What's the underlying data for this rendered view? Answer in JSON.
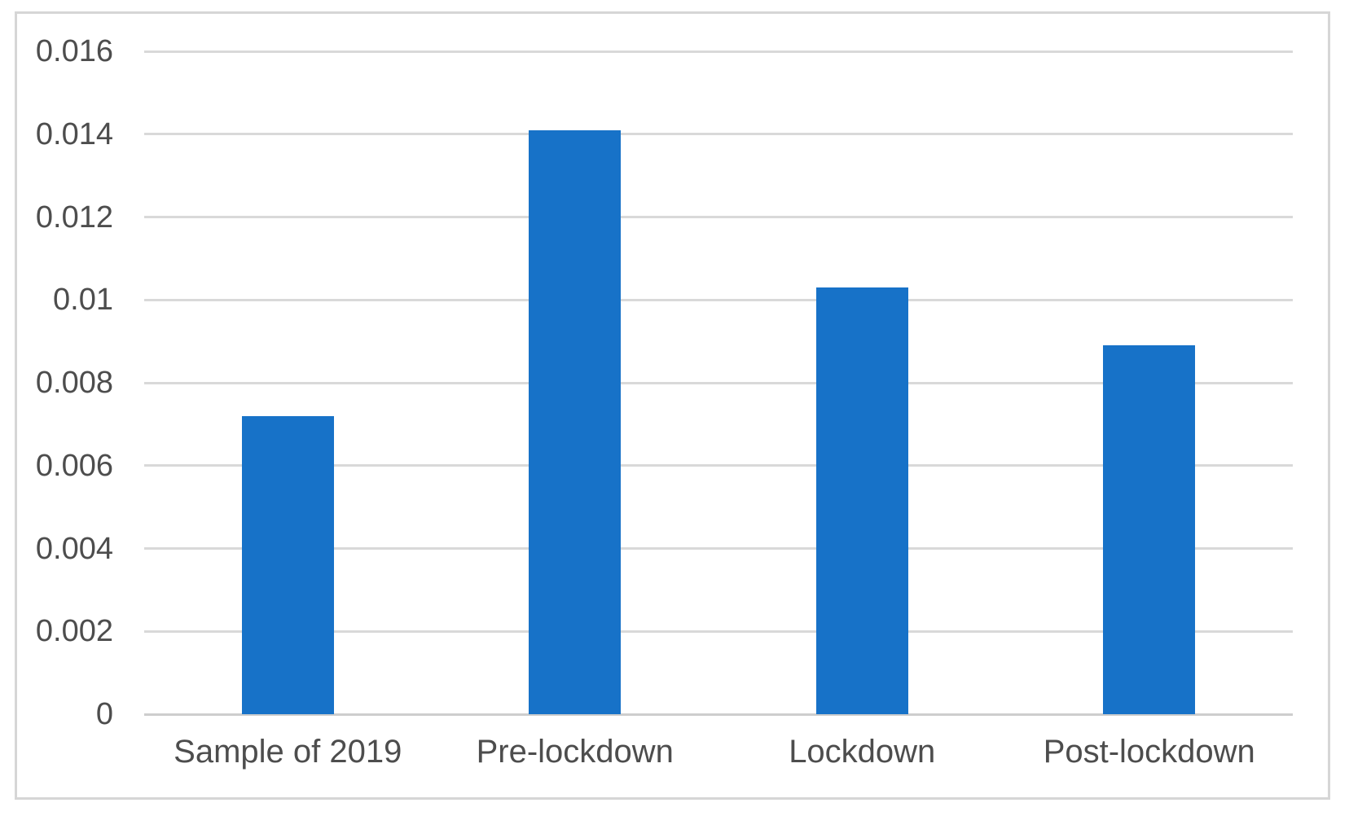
{
  "figure": {
    "background_color": "#ffffff",
    "frame_border_color": "#d6d6d6"
  },
  "chart_data": {
    "type": "bar",
    "title": "",
    "categories": [
      "Sample of 2019",
      "Pre-lockdown",
      "Lockdown",
      "Post-lockdown"
    ],
    "values": [
      0.0072,
      0.0141,
      0.0103,
      0.0089
    ],
    "xlabel": "",
    "ylabel": "",
    "ylim": [
      0,
      0.016
    ],
    "y_ticks": [
      {
        "value": 0,
        "label": "0"
      },
      {
        "value": 0.002,
        "label": "0.002"
      },
      {
        "value": 0.004,
        "label": "0.004"
      },
      {
        "value": 0.006,
        "label": "0.006"
      },
      {
        "value": 0.008,
        "label": "0.008"
      },
      {
        "value": 0.01,
        "label": "0.01"
      },
      {
        "value": 0.012,
        "label": "0.012"
      },
      {
        "value": 0.014,
        "label": "0.014"
      },
      {
        "value": 0.016,
        "label": "0.016"
      }
    ],
    "grid": "horizontal",
    "legend_position": "none",
    "bar_color": "#1772c8",
    "gridline_color": "#d9d9d9",
    "axis_line_color": "#cdcdcd",
    "label_color": "#4d4d4d"
  }
}
